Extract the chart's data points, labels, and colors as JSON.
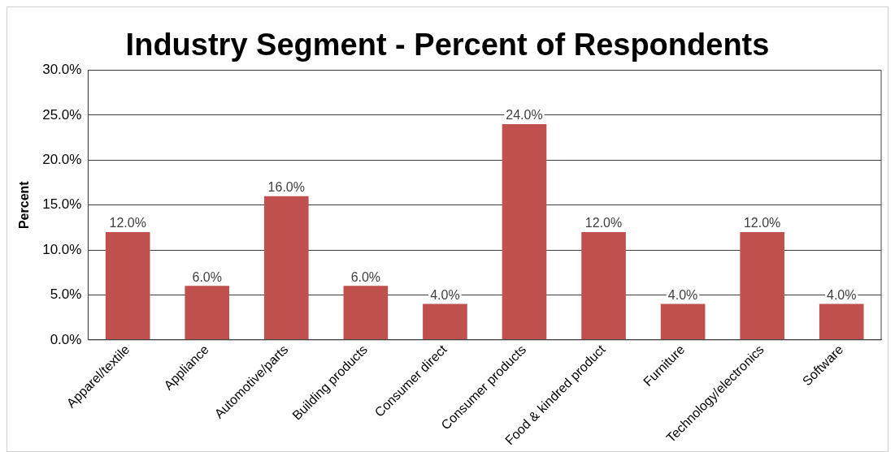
{
  "chart_data": {
    "type": "bar",
    "title": "Industry Segment - Percent of Respondents",
    "ylabel": "Percent",
    "categories": [
      "Apparel/textile",
      "Appliance",
      "Automotive/parts",
      "Building products",
      "Consumer direct",
      "Consumer products",
      "Food & kindred product",
      "Furniture",
      "Technology/electronics",
      "Software"
    ],
    "values": [
      12,
      6,
      16,
      6,
      4,
      24,
      12,
      4,
      12,
      4
    ],
    "value_labels": [
      "12.0%",
      "6.0%",
      "16.0%",
      "6.0%",
      "4.0%",
      "24.0%",
      "12.0%",
      "4.0%",
      "12.0%",
      "4.0%"
    ],
    "color": "#c0504d",
    "ylim": [
      0,
      30
    ],
    "yticks": [
      {
        "value": 0,
        "label": "0.0%"
      },
      {
        "value": 5,
        "label": "5.0%"
      },
      {
        "value": 10,
        "label": "10.0%"
      },
      {
        "value": 15,
        "label": "15.0%"
      },
      {
        "value": 20,
        "label": "20.0%"
      },
      {
        "value": 25,
        "label": "25.0%"
      },
      {
        "value": 30,
        "label": "30.0%"
      }
    ],
    "grid": "y",
    "legend": false
  }
}
